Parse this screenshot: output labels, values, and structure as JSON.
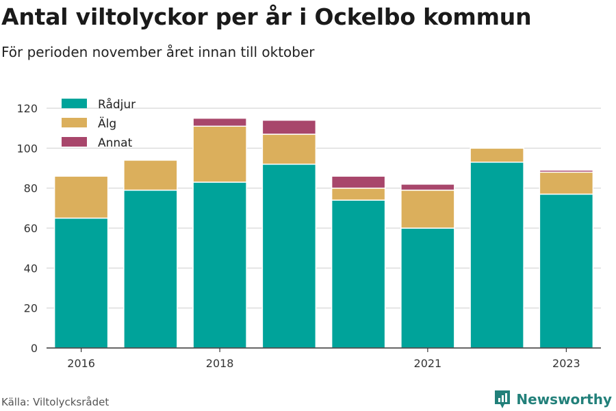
{
  "title": "Antal viltolyckor per år i Ockelbo kommun",
  "subtitle": "För perioden november året innan till oktober",
  "source": "Källa: Viltolycksrådet",
  "brand": {
    "name": "Newsworthy",
    "icon": "newsworthy-logo-icon",
    "color": "#22807a"
  },
  "chart_data": {
    "type": "bar",
    "stacked": true,
    "categories": [
      "2016",
      "2017",
      "2018",
      "2019",
      "2020",
      "2021",
      "2022",
      "2023"
    ],
    "tick_labels": [
      "2016",
      "",
      "2018",
      "",
      "",
      "2021",
      "",
      "2023"
    ],
    "series": [
      {
        "name": "Rådjur",
        "color": "#00a39a",
        "values": [
          65,
          79,
          83,
          92,
          74,
          60,
          93,
          77
        ]
      },
      {
        "name": "Älg",
        "color": "#dbaf5c",
        "values": [
          21,
          15,
          28,
          15,
          6,
          19,
          7,
          11
        ]
      },
      {
        "name": "Annat",
        "color": "#a8466b",
        "values": [
          0,
          0,
          4,
          7,
          6,
          3,
          0,
          1
        ]
      }
    ],
    "ylim": [
      0,
      120
    ],
    "yticks": [
      0,
      20,
      40,
      60,
      80,
      100,
      120
    ],
    "grid": true,
    "legend_position": "top-left",
    "xlabel": "",
    "ylabel": ""
  }
}
